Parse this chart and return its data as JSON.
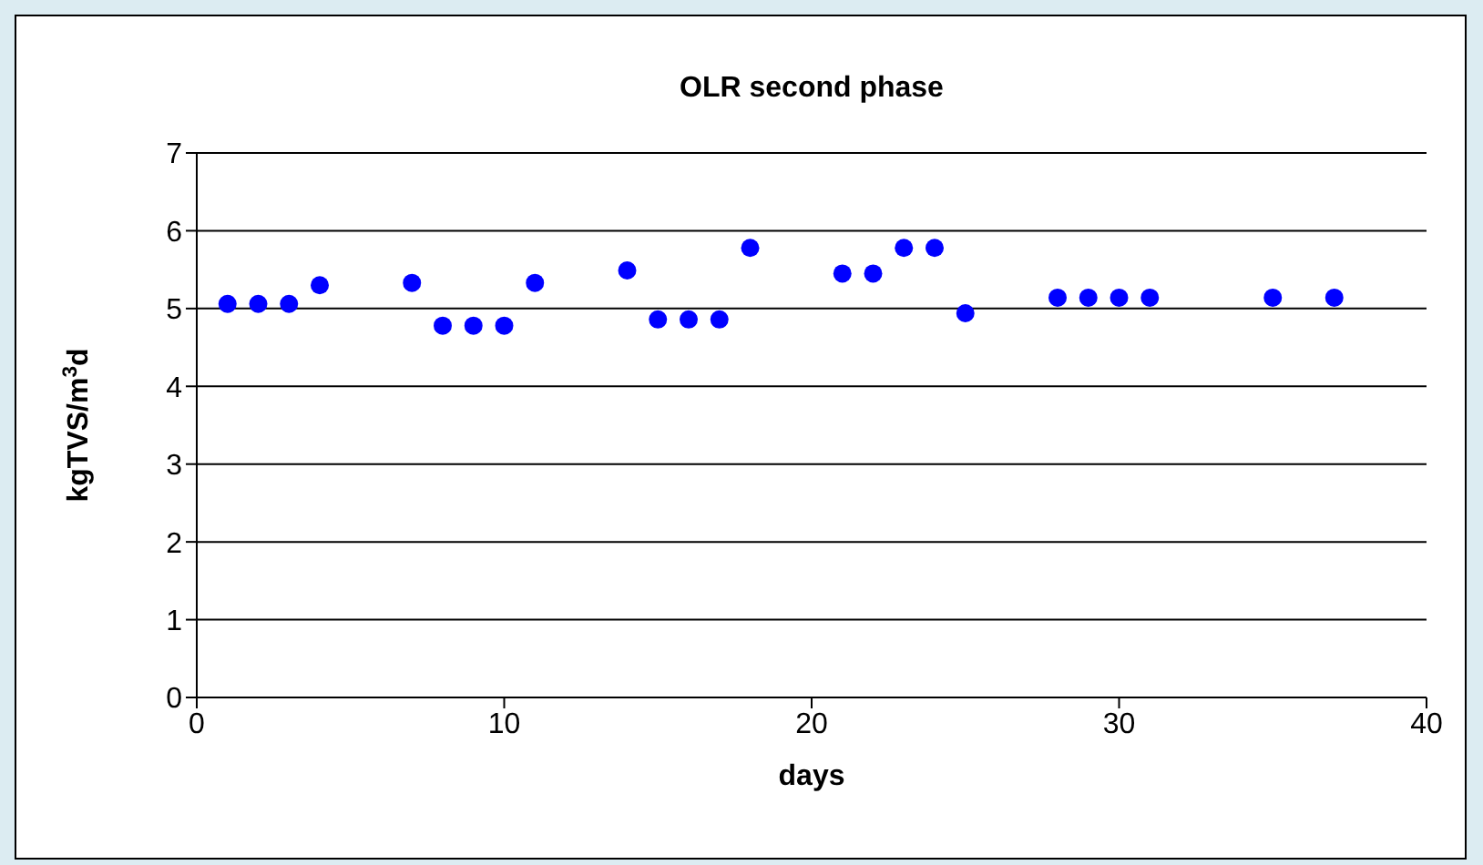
{
  "chart_data": {
    "type": "scatter",
    "title": "OLR second phase",
    "xlabel": "days",
    "ylabel": "kgTVS/m$^{3}$d",
    "x": [
      1,
      2,
      3,
      4,
      7,
      8,
      9,
      10,
      11,
      14,
      15,
      16,
      17,
      18,
      21,
      22,
      23,
      24,
      25,
      28,
      29,
      30,
      31,
      35,
      37
    ],
    "values": [
      5.06,
      5.06,
      5.06,
      5.3,
      5.33,
      4.78,
      4.78,
      4.78,
      5.33,
      5.49,
      4.86,
      4.86,
      4.86,
      5.78,
      5.45,
      5.45,
      5.78,
      5.78,
      4.94,
      5.14,
      5.14,
      5.14,
      5.14,
      5.14,
      5.14
    ],
    "color": "#0000ff",
    "marker": "circle",
    "xlim": [
      0,
      40
    ],
    "xticks": [
      0,
      10,
      20,
      30,
      40
    ],
    "ylim": [
      0,
      7
    ],
    "yticks": [
      0,
      1,
      2,
      3,
      4,
      5,
      6,
      7
    ],
    "grid": "y"
  }
}
